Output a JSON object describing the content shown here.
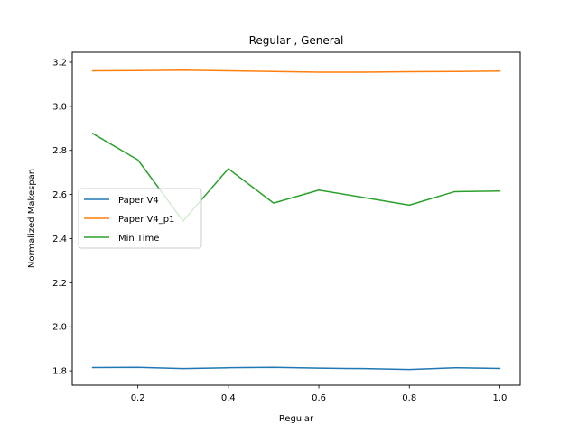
{
  "chart_data": {
    "type": "line",
    "title": "Regular , General",
    "xlabel": "Regular",
    "ylabel": "Normalized Makespan",
    "xlim": [
      0.055,
      1.045
    ],
    "ylim": [
      1.735,
      3.245
    ],
    "x_ticks": [
      0.2,
      0.4,
      0.6,
      0.8,
      1.0
    ],
    "x_tick_labels": [
      "0.2",
      "0.4",
      "0.6",
      "0.8",
      "1.0"
    ],
    "y_ticks": [
      1.8,
      2.0,
      2.2,
      2.4,
      2.6,
      2.8,
      3.0,
      3.2
    ],
    "y_tick_labels": [
      "1.8",
      "2.0",
      "2.2",
      "2.4",
      "2.6",
      "2.8",
      "3.0",
      "3.2"
    ],
    "grid": false,
    "legend_position": "center-left",
    "x": [
      0.1,
      0.2,
      0.3,
      0.4,
      0.5,
      0.6,
      0.7,
      0.8,
      0.9,
      1.0
    ],
    "series": [
      {
        "name": "Paper V4",
        "color": "#1f77b4",
        "values": [
          1.815,
          1.816,
          1.81,
          1.814,
          1.816,
          1.812,
          1.81,
          1.806,
          1.814,
          1.811
        ]
      },
      {
        "name": "Paper V4_p1",
        "color": "#ff7f0e",
        "values": [
          3.161,
          3.162,
          3.164,
          3.161,
          3.158,
          3.155,
          3.155,
          3.157,
          3.158,
          3.16
        ]
      },
      {
        "name": "Min Time",
        "color": "#2ca02c",
        "values": [
          2.877,
          2.757,
          2.48,
          2.717,
          2.561,
          2.62,
          2.586,
          2.552,
          2.613,
          2.616
        ]
      }
    ]
  }
}
